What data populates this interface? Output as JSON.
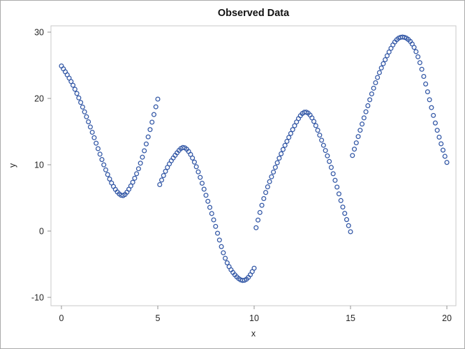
{
  "chart_data": {
    "type": "scatter",
    "title": "Observed Data",
    "xlabel": "x",
    "ylabel": "y",
    "xlim": [
      -0.543,
      20.47
    ],
    "ylim": [
      -11.26,
      30.95
    ],
    "x_ticks": [
      0,
      5,
      10,
      15,
      20
    ],
    "x_tick_labels": [
      "0",
      "5",
      "10",
      "15",
      "20"
    ],
    "y_ticks": [
      -10,
      0,
      10,
      20,
      30
    ],
    "y_tick_labels": [
      "-10",
      "0",
      "10",
      "20",
      "30"
    ],
    "grid": false,
    "legend": "none",
    "marker": {
      "shape": "open-circle",
      "color": "#3156A5",
      "radius_px": 2.9,
      "stroke_px": 1.25
    },
    "sampling": {
      "x_step": 0.1,
      "total_points": 201
    },
    "series": [
      {
        "name": "Observed Data",
        "description": "Piecewise-smooth curve with jump discontinuities at x=5, 10, 15; points every 0.1 in x",
        "segments": [
          {
            "x_start": 0.0,
            "x_end": 5.0,
            "anchors": [
              [
                0,
                24.9
              ],
              [
                0.5,
                22.55
              ],
              [
                1,
                19.4
              ],
              [
                1.5,
                15.7
              ],
              [
                2,
                11.6
              ],
              [
                2.5,
                7.85
              ],
              [
                3,
                5.6
              ],
              [
                3.2,
                5.35
              ],
              [
                3.5,
                6.3
              ],
              [
                4,
                9.4
              ],
              [
                4.5,
                14.2
              ],
              [
                5,
                19.9
              ]
            ]
          },
          {
            "x_start": 5.1,
            "x_end": 10.0,
            "anchors": [
              [
                5.1,
                7.0
              ],
              [
                5.5,
                9.6
              ],
              [
                6,
                11.8
              ],
              [
                6.3,
                12.6
              ],
              [
                6.6,
                12.0
              ],
              [
                7,
                9.7
              ],
              [
                7.5,
                5.4
              ],
              [
                8,
                0.7
              ],
              [
                8.5,
                -4.1
              ],
              [
                9,
                -6.6
              ],
              [
                9.45,
                -7.45
              ],
              [
                9.75,
                -6.8
              ],
              [
                10,
                -5.6
              ]
            ]
          },
          {
            "x_start": 10.1,
            "x_end": 15.0,
            "anchors": [
              [
                10.1,
                0.5
              ],
              [
                10.5,
                4.9
              ],
              [
                11,
                8.9
              ],
              [
                11.5,
                12.3
              ],
              [
                12,
                15.3
              ],
              [
                12.4,
                17.4
              ],
              [
                12.65,
                17.95
              ],
              [
                12.9,
                17.5
              ],
              [
                13.5,
                13.7
              ],
              [
                14,
                9.6
              ],
              [
                14.5,
                4.6
              ],
              [
                15,
                -0.1
              ]
            ]
          },
          {
            "x_start": 15.1,
            "x_end": 20.0,
            "anchors": [
              [
                15.1,
                11.4
              ],
              [
                15.5,
                15.2
              ],
              [
                16,
                19.8
              ],
              [
                16.5,
                23.9
              ],
              [
                17,
                27.0
              ],
              [
                17.35,
                28.7
              ],
              [
                17.65,
                29.25
              ],
              [
                17.95,
                29.0
              ],
              [
                18.3,
                27.7
              ],
              [
                18.7,
                24.4
              ],
              [
                19,
                21.0
              ],
              [
                19.5,
                15.2
              ],
              [
                20,
                10.35
              ]
            ]
          }
        ]
      }
    ],
    "colors": {
      "marker": "#3156A5",
      "plot_frame_border": "#c9c9c9",
      "tick_mark": "#919191",
      "tick_label": "#262626",
      "title_text": "#111111",
      "background": "#ffffff",
      "outer_border": "#a9a9a9"
    }
  }
}
